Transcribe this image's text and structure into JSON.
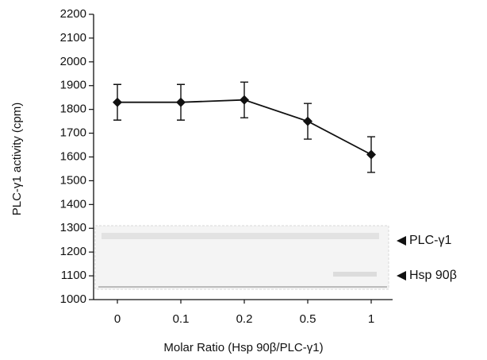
{
  "chart_data": {
    "type": "line",
    "x_label": "Molar Ratio (Hsp 90β/PLC-γ1)",
    "y_label": "PLC-γ1 activity (cpm)",
    "categories": [
      "0",
      "0.1",
      "0.2",
      "0.5",
      "1"
    ],
    "series": [
      {
        "color": "#111111",
        "values": [
          1830,
          1830,
          1840,
          1750,
          1610
        ],
        "errors": [
          75,
          75,
          75,
          75,
          75
        ]
      }
    ],
    "ylim": [
      1000,
      2200
    ],
    "yticks": [
      1000,
      1100,
      1200,
      1300,
      1400,
      1500,
      1600,
      1700,
      1800,
      1900,
      2000,
      2100,
      2200
    ],
    "annotations": [
      "PLC-γ1",
      "Hsp 90β"
    ]
  }
}
